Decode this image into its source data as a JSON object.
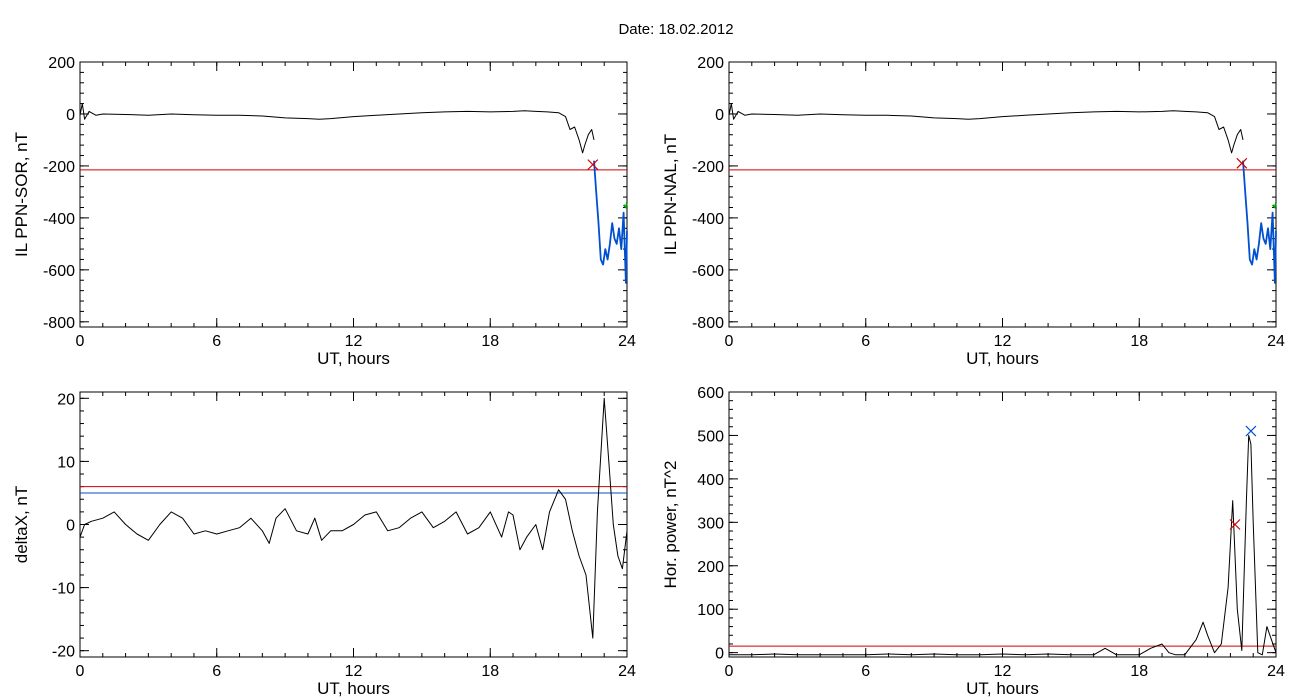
{
  "page": {
    "title": "Date:  18.02.2012"
  },
  "chart_data": [
    {
      "type": "line",
      "xlabel": "UT, hours",
      "ylabel": "IL PPN-SOR, nT",
      "xlim": [
        0,
        24
      ],
      "ylim": [
        -820,
        200
      ],
      "xticks": [
        0,
        6,
        12,
        18,
        24
      ],
      "yticks": [
        200,
        0,
        -200,
        -400,
        -600,
        -800
      ],
      "series": [
        {
          "color": "#000000",
          "x": [
            0,
            0.1,
            0.2,
            0.4,
            0.7,
            1,
            2,
            3,
            4,
            5,
            6,
            7,
            8,
            9,
            10,
            10.5,
            11,
            12,
            13,
            14,
            15,
            16,
            17,
            18,
            19,
            19.5,
            20,
            20.5,
            21,
            21.3,
            21.5,
            21.7,
            21.9,
            22.05,
            22.15,
            22.3,
            22.45,
            22.55
          ],
          "y": [
            -5,
            40,
            -20,
            10,
            -5,
            0,
            -2,
            -5,
            0,
            -3,
            -5,
            -5,
            -8,
            -15,
            -18,
            -20,
            -18,
            -10,
            -5,
            0,
            5,
            8,
            10,
            8,
            10,
            12,
            10,
            8,
            5,
            -10,
            -60,
            -50,
            -100,
            -150,
            -120,
            -80,
            -60,
            -100
          ]
        },
        {
          "color": "#0050d0",
          "x": [
            22.55,
            22.65,
            22.75,
            22.85,
            22.95,
            23.05,
            23.15,
            23.25,
            23.35,
            23.45,
            23.55,
            23.65,
            23.75,
            23.85,
            23.95,
            24
          ],
          "y": [
            -180,
            -300,
            -420,
            -560,
            -580,
            -520,
            -560,
            -500,
            -420,
            -480,
            -500,
            -440,
            -520,
            -380,
            -650,
            -450
          ]
        },
        {
          "color": "#00a000",
          "x": [
            23.85,
            23.95,
            24
          ],
          "y": [
            -350,
            -360,
            -340
          ]
        }
      ],
      "thresholds": [
        {
          "y": -215,
          "color": "#d00000"
        }
      ],
      "markers": [
        {
          "x": 22.5,
          "y": -195,
          "color": "#d00000"
        }
      ]
    },
    {
      "type": "line",
      "xlabel": "UT, hours",
      "ylabel": "IL PPN-NAL, nT",
      "xlim": [
        0,
        24
      ],
      "ylim": [
        -820,
        200
      ],
      "xticks": [
        0,
        6,
        12,
        18,
        24
      ],
      "yticks": [
        200,
        0,
        -200,
        -400,
        -600,
        -800
      ],
      "series": [
        {
          "color": "#000000",
          "x": [
            0,
            0.1,
            0.2,
            0.4,
            0.7,
            1,
            2,
            3,
            4,
            5,
            6,
            7,
            8,
            9,
            10,
            10.5,
            11,
            12,
            13,
            14,
            15,
            16,
            17,
            18,
            19,
            19.5,
            20,
            20.5,
            21,
            21.3,
            21.5,
            21.7,
            21.9,
            22.05,
            22.15,
            22.3,
            22.45,
            22.55
          ],
          "y": [
            -5,
            40,
            -20,
            10,
            -5,
            0,
            -2,
            -5,
            0,
            -3,
            -5,
            -5,
            -8,
            -15,
            -18,
            -20,
            -18,
            -10,
            -5,
            0,
            5,
            8,
            10,
            8,
            10,
            12,
            10,
            8,
            5,
            -10,
            -60,
            -50,
            -100,
            -150,
            -120,
            -80,
            -60,
            -100
          ]
        },
        {
          "color": "#0050d0",
          "x": [
            22.55,
            22.65,
            22.75,
            22.85,
            22.95,
            23.05,
            23.15,
            23.25,
            23.35,
            23.45,
            23.55,
            23.65,
            23.75,
            23.85,
            23.95,
            24
          ],
          "y": [
            -180,
            -300,
            -420,
            -560,
            -580,
            -520,
            -560,
            -500,
            -420,
            -480,
            -500,
            -440,
            -520,
            -380,
            -650,
            -450
          ]
        },
        {
          "color": "#00a000",
          "x": [
            23.85,
            23.95,
            24
          ],
          "y": [
            -350,
            -360,
            -340
          ]
        }
      ],
      "thresholds": [
        {
          "y": -215,
          "color": "#d00000"
        }
      ],
      "markers": [
        {
          "x": 22.5,
          "y": -190,
          "color": "#d00000"
        }
      ]
    },
    {
      "type": "line",
      "xlabel": "UT, hours",
      "ylabel": "deltaX, nT",
      "xlim": [
        0,
        24
      ],
      "ylim": [
        -21,
        21
      ],
      "xticks": [
        0,
        6,
        12,
        18,
        24
      ],
      "yticks": [
        20,
        10,
        0,
        -10,
        -20
      ],
      "series": [
        {
          "color": "#000000",
          "x": [
            0,
            0.2,
            0.5,
            1,
            1.5,
            2,
            2.5,
            3,
            3.5,
            4,
            4.5,
            5,
            5.5,
            6,
            6.5,
            7,
            7.5,
            8,
            8.3,
            8.6,
            9,
            9.5,
            10,
            10.3,
            10.6,
            11,
            11.5,
            12,
            12.5,
            13,
            13.5,
            14,
            14.5,
            15,
            15.5,
            16,
            16.5,
            17,
            17.5,
            18,
            18.5,
            18.8,
            19,
            19.3,
            19.6,
            20,
            20.3,
            20.6,
            21,
            21.3,
            21.6,
            21.9,
            22.2,
            22.5,
            22.7,
            23,
            23.2,
            23.4,
            23.6,
            23.8,
            24
          ],
          "y": [
            -2,
            0,
            0.5,
            1,
            2,
            0,
            -1.5,
            -2.5,
            0,
            2,
            1,
            -1.5,
            -1,
            -1.5,
            -1,
            -0.5,
            1,
            -1,
            -3,
            1,
            2.5,
            -1,
            -1.5,
            1,
            -2.5,
            -1,
            -1,
            0,
            1.5,
            2,
            -1,
            -0.5,
            1,
            2,
            -0.5,
            0.5,
            2,
            -1.5,
            -0.5,
            2,
            -2,
            2,
            1.5,
            -4,
            -2,
            0,
            -4,
            2,
            5.5,
            4,
            -1,
            -5,
            -8,
            -18,
            2,
            20,
            10,
            0,
            -5,
            -7,
            -1
          ]
        }
      ],
      "thresholds": [
        {
          "y": 6,
          "color": "#d00000"
        },
        {
          "y": 5,
          "color": "#0050d0"
        }
      ],
      "markers": []
    },
    {
      "type": "line",
      "xlabel": "UT, hours",
      "ylabel": "Hor. power, nT^2",
      "xlim": [
        0,
        24
      ],
      "ylim": [
        -10,
        600
      ],
      "xticks": [
        0,
        6,
        12,
        18,
        24
      ],
      "yticks": [
        600,
        500,
        400,
        300,
        200,
        100,
        0
      ],
      "series": [
        {
          "color": "#000000",
          "x": [
            0,
            1,
            2,
            3,
            4,
            5,
            6,
            7,
            8,
            9,
            10,
            11,
            12,
            13,
            14,
            15,
            16,
            16.5,
            17,
            17.5,
            18,
            18.5,
            19,
            19.3,
            19.6,
            20,
            20.5,
            20.8,
            21,
            21.3,
            21.6,
            21.9,
            22.1,
            22.3,
            22.5,
            22.7,
            22.8,
            22.9,
            23,
            23.2,
            23.4,
            23.6,
            23.8,
            24
          ],
          "y": [
            -5,
            -5,
            -3,
            -5,
            -5,
            -5,
            -5,
            -3,
            -5,
            -3,
            -5,
            -5,
            -3,
            -5,
            -3,
            -5,
            -5,
            10,
            -5,
            -5,
            -5,
            10,
            20,
            0,
            -5,
            -5,
            30,
            70,
            40,
            0,
            20,
            150,
            350,
            100,
            5,
            350,
            500,
            480,
            300,
            0,
            -5,
            60,
            30,
            0
          ]
        }
      ],
      "thresholds": [
        {
          "y": 15,
          "color": "#d00000"
        }
      ],
      "markers": [
        {
          "x": 22.2,
          "y": 295,
          "color": "#d00000"
        },
        {
          "x": 22.9,
          "y": 510,
          "color": "#0050d0"
        }
      ]
    }
  ]
}
